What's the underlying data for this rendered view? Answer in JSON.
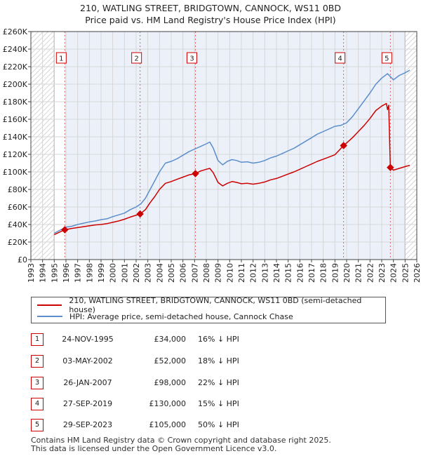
{
  "title_line1": "210, WATLING STREET, BRIDGTOWN, CANNOCK, WS11 0BD",
  "title_line2": "Price paid vs. HM Land Registry's House Price Index (HPI)",
  "legend": {
    "property_label": "210, WATLING STREET, BRIDGTOWN, CANNOCK, WS11 0BD (semi-detached house)",
    "hpi_label": "HPI: Average price, semi-detached house, Cannock Chase"
  },
  "transactions": [
    {
      "num": "1",
      "date": "24-NOV-1995",
      "price": "£34,000",
      "hpi": "16% ↓ HPI"
    },
    {
      "num": "2",
      "date": "03-MAY-2002",
      "price": "£52,000",
      "hpi": "18% ↓ HPI"
    },
    {
      "num": "3",
      "date": "26-JAN-2007",
      "price": "£98,000",
      "hpi": "22% ↓ HPI"
    },
    {
      "num": "4",
      "date": "27-SEP-2019",
      "price": "£130,000",
      "hpi": "15% ↓ HPI"
    },
    {
      "num": "5",
      "date": "29-SEP-2023",
      "price": "£105,000",
      "hpi": "50% ↓ HPI"
    }
  ],
  "footer_line1": "Contains HM Land Registry data © Crown copyright and database right 2025.",
  "footer_line2": "This data is licensed under the Open Government Licence v3.0.",
  "colors": {
    "property": "#cc0000",
    "hpi": "#5b8ecb",
    "shade": "#dde6f4",
    "grid": "#d6d6d6",
    "vline": "#e06060"
  },
  "chart_data": {
    "type": "line",
    "x_range": [
      1993,
      2026
    ],
    "ylim": [
      0,
      260000
    ],
    "y_ticks": [
      0,
      20000,
      40000,
      60000,
      80000,
      100000,
      120000,
      140000,
      160000,
      180000,
      200000,
      220000,
      240000,
      260000
    ],
    "y_tick_labels": [
      "£0",
      "£20K",
      "£40K",
      "£60K",
      "£80K",
      "£100K",
      "£120K",
      "£140K",
      "£160K",
      "£180K",
      "£200K",
      "£220K",
      "£240K",
      "£260K"
    ],
    "x_tick_labels": [
      "1993",
      "1994",
      "1995",
      "1996",
      "1997",
      "1998",
      "1999",
      "2000",
      "2001",
      "2002",
      "2003",
      "2004",
      "2005",
      "2006",
      "2007",
      "2008",
      "2009",
      "2010",
      "2011",
      "2012",
      "2013",
      "2014",
      "2015",
      "2016",
      "2017",
      "2018",
      "2019",
      "2020",
      "2021",
      "2022",
      "2023",
      "2024",
      "2025",
      "2026"
    ],
    "hatched_ranges": [
      [
        1993,
        1995.0
      ],
      [
        2025.0,
        2026
      ]
    ],
    "series": [
      {
        "name": "HPI: Average price, semi-detached house, Cannock Chase",
        "points": [
          [
            1995.0,
            30000
          ],
          [
            1995.5,
            33500
          ],
          [
            1996.0,
            37000
          ],
          [
            1996.5,
            38000
          ],
          [
            1997.0,
            40000
          ],
          [
            1997.5,
            41500
          ],
          [
            1998.0,
            43000
          ],
          [
            1998.5,
            44000
          ],
          [
            1999.0,
            45500
          ],
          [
            1999.5,
            46500
          ],
          [
            2000.0,
            49000
          ],
          [
            2000.5,
            51000
          ],
          [
            2001.0,
            53000
          ],
          [
            2001.5,
            57000
          ],
          [
            2002.0,
            60000
          ],
          [
            2002.4,
            63500
          ],
          [
            2002.8,
            70000
          ],
          [
            2003.2,
            80000
          ],
          [
            2003.6,
            90000
          ],
          [
            2004.0,
            100000
          ],
          [
            2004.5,
            110000
          ],
          [
            2005.0,
            112000
          ],
          [
            2005.5,
            115000
          ],
          [
            2006.0,
            119000
          ],
          [
            2006.5,
            123000
          ],
          [
            2007.0,
            126000
          ],
          [
            2007.5,
            129000
          ],
          [
            2008.0,
            132000
          ],
          [
            2008.3,
            134000
          ],
          [
            2008.6,
            127000
          ],
          [
            2009.0,
            113000
          ],
          [
            2009.4,
            108000
          ],
          [
            2009.8,
            112000
          ],
          [
            2010.2,
            114000
          ],
          [
            2010.6,
            113000
          ],
          [
            2011.0,
            111000
          ],
          [
            2011.5,
            111500
          ],
          [
            2012.0,
            110000
          ],
          [
            2012.5,
            111000
          ],
          [
            2013.0,
            113000
          ],
          [
            2013.5,
            116000
          ],
          [
            2014.0,
            118000
          ],
          [
            2014.5,
            121000
          ],
          [
            2015.0,
            124000
          ],
          [
            2015.5,
            127000
          ],
          [
            2016.0,
            131000
          ],
          [
            2016.5,
            135000
          ],
          [
            2017.0,
            139000
          ],
          [
            2017.5,
            143000
          ],
          [
            2018.0,
            146000
          ],
          [
            2018.5,
            149000
          ],
          [
            2019.0,
            152000
          ],
          [
            2019.5,
            153000
          ],
          [
            2020.0,
            156000
          ],
          [
            2020.5,
            163000
          ],
          [
            2021.0,
            172000
          ],
          [
            2021.5,
            181000
          ],
          [
            2022.0,
            190000
          ],
          [
            2022.5,
            200000
          ],
          [
            2023.0,
            207000
          ],
          [
            2023.5,
            212000
          ],
          [
            2024.0,
            205000
          ],
          [
            2024.5,
            210000
          ],
          [
            2025.0,
            213000
          ],
          [
            2025.4,
            216000
          ]
        ]
      },
      {
        "name": "210, WATLING STREET, BRIDGTOWN, CANNOCK, WS11 0BD (semi-detached house)",
        "points": [
          [
            1995.0,
            28500
          ],
          [
            1995.9,
            34000
          ],
          [
            1996.5,
            35500
          ],
          [
            1997.0,
            36500
          ],
          [
            1997.5,
            37500
          ],
          [
            1998.0,
            38500
          ],
          [
            1998.5,
            39500
          ],
          [
            1999.0,
            40000
          ],
          [
            1999.5,
            41000
          ],
          [
            2000.0,
            42500
          ],
          [
            2000.5,
            44000
          ],
          [
            2001.0,
            46000
          ],
          [
            2001.5,
            48500
          ],
          [
            2002.34,
            52000
          ],
          [
            2002.8,
            57000
          ],
          [
            2003.2,
            65000
          ],
          [
            2003.6,
            72000
          ],
          [
            2004.0,
            80000
          ],
          [
            2004.5,
            87000
          ],
          [
            2005.0,
            89000
          ],
          [
            2005.5,
            91500
          ],
          [
            2006.0,
            94000
          ],
          [
            2006.5,
            96500
          ],
          [
            2007.07,
            98000
          ],
          [
            2007.5,
            101000
          ],
          [
            2008.0,
            103000
          ],
          [
            2008.3,
            104000
          ],
          [
            2008.6,
            99000
          ],
          [
            2009.0,
            88000
          ],
          [
            2009.4,
            84000
          ],
          [
            2009.8,
            87000
          ],
          [
            2010.2,
            89000
          ],
          [
            2010.6,
            88000
          ],
          [
            2011.0,
            86500
          ],
          [
            2011.5,
            87000
          ],
          [
            2012.0,
            86000
          ],
          [
            2012.5,
            87000
          ],
          [
            2013.0,
            88500
          ],
          [
            2013.5,
            91000
          ],
          [
            2014.0,
            92500
          ],
          [
            2014.5,
            95000
          ],
          [
            2015.0,
            97500
          ],
          [
            2015.5,
            100000
          ],
          [
            2016.0,
            103000
          ],
          [
            2016.5,
            106000
          ],
          [
            2017.0,
            109000
          ],
          [
            2017.5,
            112000
          ],
          [
            2018.0,
            114500
          ],
          [
            2018.5,
            117000
          ],
          [
            2019.0,
            119500
          ],
          [
            2019.74,
            130000
          ],
          [
            2020.0,
            133000
          ],
          [
            2020.5,
            139000
          ],
          [
            2021.0,
            146000
          ],
          [
            2021.5,
            153000
          ],
          [
            2022.0,
            161000
          ],
          [
            2022.5,
            170000
          ],
          [
            2023.0,
            175000
          ],
          [
            2023.4,
            178000
          ],
          [
            2023.5,
            171000
          ],
          [
            2023.6,
            176000
          ],
          [
            2023.74,
            105000
          ],
          [
            2024.0,
            102000
          ],
          [
            2024.5,
            104000
          ],
          [
            2025.0,
            106000
          ],
          [
            2025.4,
            107500
          ]
        ]
      }
    ],
    "sales": [
      {
        "num": "1",
        "x": 1995.9,
        "y": 34000
      },
      {
        "num": "2",
        "x": 2002.34,
        "y": 52000
      },
      {
        "num": "3",
        "x": 2007.07,
        "y": 98000
      },
      {
        "num": "4",
        "x": 2019.74,
        "y": 130000
      },
      {
        "num": "5",
        "x": 2023.74,
        "y": 105000
      }
    ]
  }
}
